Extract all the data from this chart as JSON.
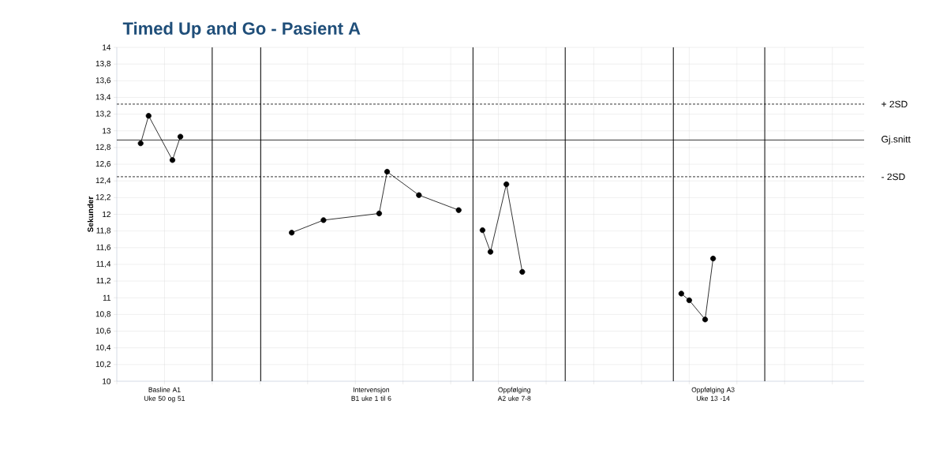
{
  "chart_data": {
    "type": "line",
    "title": "Timed Up and Go - Pasient A",
    "ylabel": "Sekunder",
    "categories": [
      null,
      null,
      null,
      null,
      null,
      null,
      "Basline A1 Uke 50 og 51",
      null,
      null,
      null,
      null,
      null,
      null,
      null,
      null,
      null,
      null,
      null,
      null,
      null,
      null,
      null,
      null,
      null,
      null,
      null,
      null,
      null,
      null,
      null,
      null,
      null,
      "Intervensjon B1 uke 1 til 6",
      null,
      null,
      null,
      null,
      null,
      null,
      null,
      null,
      null,
      null,
      null,
      null,
      null,
      null,
      null,
      null,
      null,
      "Oppfølging A2 uke 7-8",
      null,
      null,
      null,
      null,
      null,
      null,
      null,
      null,
      null,
      null,
      null,
      null,
      null,
      null,
      null,
      null,
      null,
      null,
      null,
      null,
      null,
      null,
      null,
      null,
      "Oppfølging A3 Uke 13 -14",
      null,
      null,
      null,
      null,
      null,
      null,
      null,
      null,
      null,
      null,
      null,
      null,
      null,
      null,
      null,
      null,
      null,
      null,
      null
    ],
    "series": [
      {
        "color": "#000000",
        "values": [
          null,
          null,
          null,
          12.85,
          13.18,
          null,
          null,
          12.65,
          12.93,
          null,
          null,
          null,
          null,
          null,
          null,
          null,
          null,
          null,
          null,
          null,
          null,
          null,
          null,
          null,
          null,
          null,
          null,
          null,
          null,
          null,
          null,
          null,
          null,
          null,
          null,
          null,
          null,
          null,
          null,
          null,
          null,
          null,
          null,
          null,
          null,
          null,
          null,
          null,
          null,
          null,
          null,
          null,
          null,
          null,
          null,
          null,
          null,
          null,
          null,
          null,
          null,
          null,
          null,
          null,
          null,
          null,
          null,
          null,
          null,
          null,
          null,
          null,
          null,
          null,
          null,
          null,
          null,
          null,
          null,
          null,
          null,
          null,
          null,
          null,
          null,
          null,
          null,
          null,
          null,
          null,
          null,
          null,
          null,
          null,
          null
        ]
      },
      {
        "color": "#000000",
        "values": [
          null,
          null,
          null,
          null,
          null,
          null,
          null,
          null,
          null,
          null,
          null,
          null,
          null,
          null,
          null,
          null,
          null,
          null,
          null,
          null,
          null,
          null,
          11.78,
          null,
          null,
          null,
          11.93,
          null,
          null,
          null,
          null,
          null,
          null,
          12.01,
          12.51,
          null,
          null,
          null,
          12.23,
          null,
          null,
          null,
          null,
          12.05,
          null,
          null,
          null,
          null,
          null,
          null,
          null,
          null,
          null,
          null,
          null,
          null,
          null,
          null,
          null,
          null,
          null,
          null,
          null,
          null,
          null,
          null,
          null,
          null,
          null,
          null,
          null,
          null,
          null,
          null,
          null,
          null,
          null,
          null,
          null,
          null,
          null,
          null,
          null,
          null,
          null,
          null,
          null,
          null,
          null,
          null,
          null,
          null,
          null,
          null,
          null
        ]
      },
      {
        "color": "#000000",
        "values": [
          null,
          null,
          null,
          null,
          null,
          null,
          null,
          null,
          null,
          null,
          null,
          null,
          null,
          null,
          null,
          null,
          null,
          null,
          null,
          null,
          null,
          null,
          null,
          null,
          null,
          null,
          null,
          null,
          null,
          null,
          null,
          null,
          null,
          null,
          null,
          null,
          null,
          null,
          null,
          null,
          null,
          null,
          null,
          null,
          null,
          null,
          11.81,
          11.55,
          null,
          12.36,
          null,
          11.31,
          null,
          null,
          null,
          null,
          null,
          null,
          null,
          null,
          null,
          null,
          null,
          null,
          null,
          null,
          null,
          null,
          null,
          null,
          null,
          null,
          null,
          null,
          null,
          null,
          null,
          null,
          null,
          null,
          null,
          null,
          null,
          null,
          null,
          null,
          null,
          null,
          null,
          null,
          null,
          null,
          null,
          null,
          null
        ]
      },
      {
        "color": "#000000",
        "values": [
          null,
          null,
          null,
          null,
          null,
          null,
          null,
          null,
          null,
          null,
          null,
          null,
          null,
          null,
          null,
          null,
          null,
          null,
          null,
          null,
          null,
          null,
          null,
          null,
          null,
          null,
          null,
          null,
          null,
          null,
          null,
          null,
          null,
          null,
          null,
          null,
          null,
          null,
          null,
          null,
          null,
          null,
          null,
          null,
          null,
          null,
          null,
          null,
          null,
          null,
          null,
          null,
          null,
          null,
          null,
          null,
          null,
          null,
          null,
          null,
          null,
          null,
          null,
          null,
          null,
          null,
          null,
          null,
          null,
          null,
          null,
          11.05,
          10.97,
          null,
          10.74,
          11.47,
          null,
          null,
          null,
          null,
          null,
          null,
          null,
          null,
          null,
          null,
          null,
          null,
          null,
          null,
          null,
          null,
          null,
          null,
          null
        ]
      }
    ],
    "ylim": [
      10,
      14
    ],
    "yticks": [
      10,
      {
        "value": 10.2,
        "label": "10,2"
      },
      {
        "value": 10.4,
        "label": "10,4"
      },
      {
        "value": 10.6,
        "label": "10,6"
      },
      {
        "value": 10.8,
        "label": "10,8"
      },
      11,
      {
        "value": 11.2,
        "label": "11,2"
      },
      {
        "value": 11.4,
        "label": "11,4"
      },
      {
        "value": 11.6,
        "label": "11,6"
      },
      {
        "value": 11.8,
        "label": "11,8"
      },
      12,
      {
        "value": 12.2,
        "label": "12,2"
      },
      {
        "value": 12.4,
        "label": "12,4"
      },
      {
        "value": 12.6,
        "label": "12,6"
      },
      {
        "value": 12.8,
        "label": "12,8"
      },
      13,
      {
        "value": 13.2,
        "label": "13,2"
      },
      {
        "value": 13.4,
        "label": "13,4"
      },
      {
        "value": 13.6,
        "label": "13,6"
      },
      {
        "value": 13.8,
        "label": "13,8"
      },
      14
    ],
    "ref_lines": [
      {
        "axis": "y",
        "value": 13.32,
        "label": "+ 2SD",
        "line_style": "dashed",
        "color": "#000000"
      },
      {
        "axis": "y",
        "value": 12.89,
        "label": "Gj.snitt",
        "line_style": "solid",
        "color": "#000000"
      },
      {
        "axis": "y",
        "value": 12.45,
        "label": "- 2SD",
        "line_style": "dashed",
        "color": "#000000"
      }
    ],
    "grid": true,
    "marker": "circle",
    "line_style": "solid"
  }
}
